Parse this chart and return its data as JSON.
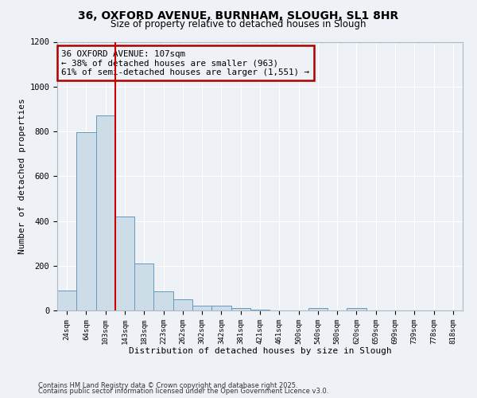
{
  "title": "36, OXFORD AVENUE, BURNHAM, SLOUGH, SL1 8HR",
  "subtitle": "Size of property relative to detached houses in Slough",
  "xlabel": "Distribution of detached houses by size in Slough",
  "ylabel": "Number of detached properties",
  "bar_values": [
    90,
    795,
    870,
    420,
    210,
    85,
    50,
    20,
    20,
    10,
    5,
    0,
    0,
    10,
    0,
    10,
    0,
    0,
    0,
    0,
    0
  ],
  "bar_labels": [
    "24sqm",
    "64sqm",
    "103sqm",
    "143sqm",
    "183sqm",
    "223sqm",
    "262sqm",
    "302sqm",
    "342sqm",
    "381sqm",
    "421sqm",
    "461sqm",
    "500sqm",
    "540sqm",
    "580sqm",
    "620sqm",
    "659sqm",
    "699sqm",
    "739sqm",
    "778sqm",
    "818sqm"
  ],
  "bar_color": "#ccdde8",
  "bar_edge_color": "#6699bb",
  "red_line_x": 2.5,
  "annotation_line1": "36 OXFORD AVENUE: 107sqm",
  "annotation_line2": "← 38% of detached houses are smaller (963)",
  "annotation_line3": "61% of semi-detached houses are larger (1,551) →",
  "annotation_box_color": "#aa0000",
  "ylim": [
    0,
    1200
  ],
  "yticks": [
    0,
    200,
    400,
    600,
    800,
    1000,
    1200
  ],
  "footer1": "Contains HM Land Registry data © Crown copyright and database right 2025.",
  "footer2": "Contains public sector information licensed under the Open Government Licence v3.0.",
  "background_color": "#eef2f7",
  "grid_color": "#ffffff"
}
